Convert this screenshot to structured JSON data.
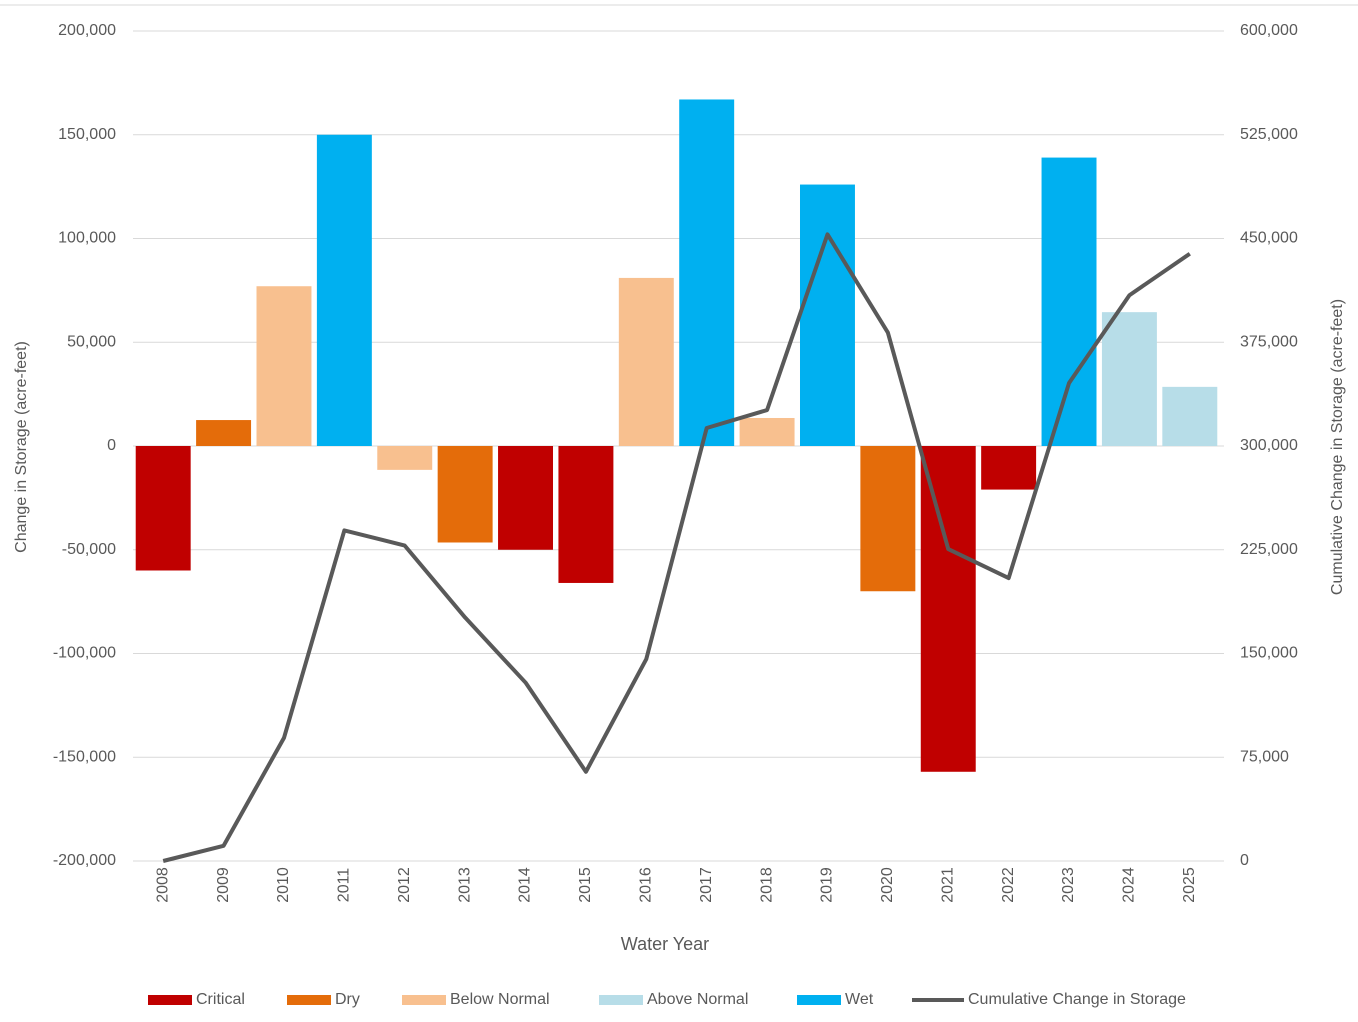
{
  "chart_data": {
    "type": "bar",
    "x_label": "Water Year",
    "y_label": "Change in Storage (acre-feet)",
    "y2_label": "Cumulative Change in Storage (acre-feet)",
    "categories": [
      "2008",
      "2009",
      "2010",
      "2011",
      "2012",
      "2013",
      "2014",
      "2015",
      "2016",
      "2017",
      "2018",
      "2019",
      "2020",
      "2021",
      "2022",
      "2023",
      "2024",
      "2025"
    ],
    "series": [
      {
        "name": "Critical",
        "color": "#c00000",
        "values": [
          -60000,
          null,
          null,
          null,
          null,
          null,
          -50000,
          -66000,
          null,
          null,
          null,
          null,
          null,
          -157000,
          -21000,
          null,
          null,
          null
        ]
      },
      {
        "name": "Dry",
        "color": "#e46c0a",
        "values": [
          null,
          12500,
          null,
          null,
          null,
          -46500,
          null,
          null,
          null,
          null,
          null,
          null,
          -70000,
          null,
          null,
          null,
          null,
          null
        ]
      },
      {
        "name": "Below Normal",
        "color": "#f8c08f",
        "values": [
          null,
          null,
          77000,
          null,
          -11500,
          null,
          null,
          null,
          81000,
          null,
          13500,
          null,
          null,
          null,
          null,
          null,
          null,
          null
        ]
      },
      {
        "name": "Above Normal",
        "color": "#b7dde8",
        "values": [
          null,
          null,
          null,
          null,
          null,
          null,
          null,
          null,
          null,
          null,
          null,
          null,
          null,
          null,
          null,
          null,
          64500,
          28500
        ]
      },
      {
        "name": "Wet",
        "color": "#00b0f0",
        "values": [
          null,
          null,
          null,
          150000,
          null,
          null,
          null,
          null,
          null,
          167000,
          null,
          126000,
          null,
          null,
          null,
          139000,
          null,
          null
        ]
      },
      {
        "name": "Cumulative Change in Storage",
        "color": "#595959",
        "type": "line",
        "axis": "y2",
        "values": [
          0,
          11000,
          89000,
          239000,
          228000,
          176000,
          129000,
          64500,
          146000,
          313000,
          326000,
          453000,
          382000,
          225500,
          204500,
          345500,
          409000,
          439000
        ]
      }
    ],
    "ylim": [
      -200000,
      200000
    ],
    "yticks": [
      {
        "value": -200000,
        "label": "-200,000"
      },
      {
        "value": -150000,
        "label": "-150,000"
      },
      {
        "value": -100000,
        "label": "-100,000"
      },
      {
        "value": -50000,
        "label": "-50,000"
      },
      0,
      {
        "value": 50000,
        "label": "50,000"
      },
      {
        "value": 100000,
        "label": "100,000"
      },
      {
        "value": 150000,
        "label": "150,000"
      },
      {
        "value": 200000,
        "label": "200,000"
      }
    ],
    "y2lim": [
      0,
      600000
    ],
    "y2ticks": [
      0,
      {
        "value": 75000,
        "label": "75,000"
      },
      {
        "value": 150000,
        "label": "150,000"
      },
      {
        "value": 225000,
        "label": "225,000"
      },
      {
        "value": 300000,
        "label": "300,000"
      },
      {
        "value": 375000,
        "label": "375,000"
      },
      {
        "value": 450000,
        "label": "450,000"
      },
      {
        "value": 525000,
        "label": "525,000"
      },
      {
        "value": 600000,
        "label": "600,000"
      }
    ],
    "grid": true,
    "legend": "bottom"
  }
}
